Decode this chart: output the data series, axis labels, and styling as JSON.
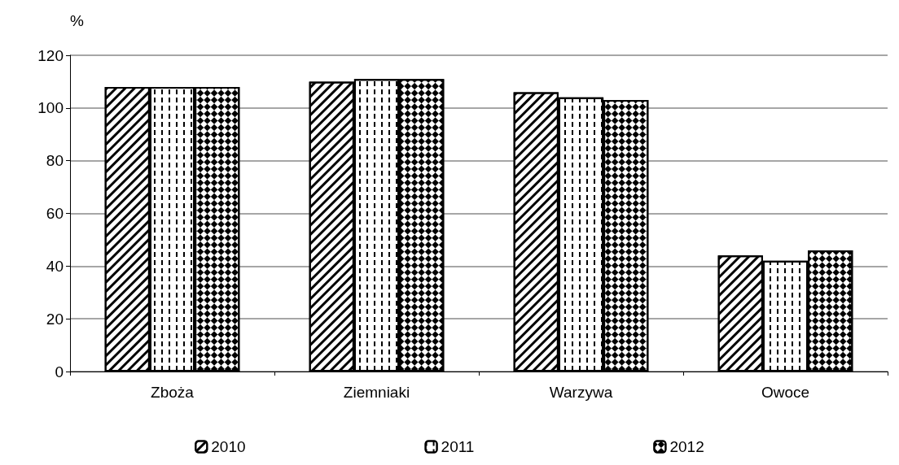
{
  "chart_data": {
    "type": "bar",
    "ylabel": "%",
    "categories": [
      "Zboża",
      "Ziemniaki",
      "Warzywa",
      "Owoce"
    ],
    "series": [
      {
        "name": "2010",
        "color": "#ffffff",
        "values": [
          108,
          110,
          106,
          44
        ]
      },
      {
        "name": "2011",
        "color": "#ffffff",
        "values": [
          108,
          111,
          104,
          42
        ]
      },
      {
        "name": "2012",
        "color": "#ffffff",
        "values": [
          108,
          111,
          103,
          46
        ]
      }
    ],
    "ylim": [
      0,
      120
    ],
    "yticks": [
      0,
      20,
      40,
      60,
      80,
      100,
      120
    ],
    "grid": "y",
    "legend": "bottom"
  }
}
